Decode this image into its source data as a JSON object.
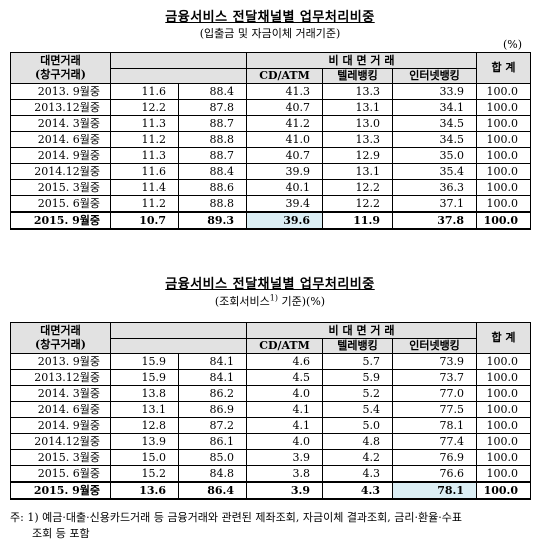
{
  "table1": {
    "title": "금융서비스 전달채널별 업무처리비중",
    "subtitle": "(입출금 및 자금이체 거래기준)",
    "unit": "(%)",
    "headers": {
      "face": "대면거래",
      "face_sub": "(창구거래)",
      "nonface": "비 대 면 거 래",
      "cd": "CD/ATM",
      "tele": "텔레뱅킹",
      "internet": "인터넷뱅킹",
      "total": "합 계"
    },
    "rows": [
      {
        "label": "2013. 9월중",
        "face": "11.6",
        "nonface": "88.4",
        "cd": "41.3",
        "tele": "13.3",
        "internet": "33.9",
        "total": "100.0"
      },
      {
        "label": "2013.12월중",
        "face": "12.2",
        "nonface": "87.8",
        "cd": "40.7",
        "tele": "13.1",
        "internet": "34.1",
        "total": "100.0"
      },
      {
        "label": "2014. 3월중",
        "face": "11.3",
        "nonface": "88.7",
        "cd": "41.2",
        "tele": "13.0",
        "internet": "34.5",
        "total": "100.0"
      },
      {
        "label": "2014. 6월중",
        "face": "11.2",
        "nonface": "88.8",
        "cd": "41.0",
        "tele": "13.3",
        "internet": "34.5",
        "total": "100.0"
      },
      {
        "label": "2014. 9월중",
        "face": "11.3",
        "nonface": "88.7",
        "cd": "40.7",
        "tele": "12.9",
        "internet": "35.0",
        "total": "100.0"
      },
      {
        "label": "2014.12월중",
        "face": "11.6",
        "nonface": "88.4",
        "cd": "39.9",
        "tele": "13.1",
        "internet": "35.4",
        "total": "100.0"
      },
      {
        "label": "2015. 3월중",
        "face": "11.4",
        "nonface": "88.6",
        "cd": "40.1",
        "tele": "12.2",
        "internet": "36.3",
        "total": "100.0"
      },
      {
        "label": "2015. 6월중",
        "face": "11.2",
        "nonface": "88.8",
        "cd": "39.4",
        "tele": "12.2",
        "internet": "37.1",
        "total": "100.0"
      },
      {
        "label": "2015. 9월중",
        "face": "10.7",
        "nonface": "89.3",
        "cd": "39.6",
        "tele": "11.9",
        "internet": "37.8",
        "total": "100.0"
      }
    ]
  },
  "table2": {
    "title": "금융서비스 전달채널별 업무처리비중",
    "subtitle": "(조회서비스",
    "subtitle_sup": "1)",
    "subtitle_end": " 기준)(%)",
    "headers": {
      "face": "대면거래",
      "face_sub": "(창구거래)",
      "nonface": "비 대 면 거 래",
      "cd": "CD/ATM",
      "tele": "텔레뱅킹",
      "internet": "인터넷뱅킹",
      "total": "합 계"
    },
    "rows": [
      {
        "label": "2013. 9월중",
        "face": "15.9",
        "nonface": "84.1",
        "cd": "4.6",
        "tele": "5.7",
        "internet": "73.9",
        "total": "100.0"
      },
      {
        "label": "2013.12월중",
        "face": "15.9",
        "nonface": "84.1",
        "cd": "4.5",
        "tele": "5.9",
        "internet": "73.7",
        "total": "100.0"
      },
      {
        "label": "2014. 3월중",
        "face": "13.8",
        "nonface": "86.2",
        "cd": "4.0",
        "tele": "5.2",
        "internet": "77.0",
        "total": "100.0"
      },
      {
        "label": "2014. 6월중",
        "face": "13.1",
        "nonface": "86.9",
        "cd": "4.1",
        "tele": "5.4",
        "internet": "77.5",
        "total": "100.0"
      },
      {
        "label": "2014. 9월중",
        "face": "12.8",
        "nonface": "87.2",
        "cd": "4.1",
        "tele": "5.0",
        "internet": "78.1",
        "total": "100.0"
      },
      {
        "label": "2014.12월중",
        "face": "13.9",
        "nonface": "86.1",
        "cd": "4.0",
        "tele": "4.8",
        "internet": "77.4",
        "total": "100.0"
      },
      {
        "label": "2015. 3월중",
        "face": "15.0",
        "nonface": "85.0",
        "cd": "3.9",
        "tele": "4.2",
        "internet": "76.9",
        "total": "100.0"
      },
      {
        "label": "2015. 6월중",
        "face": "15.2",
        "nonface": "84.8",
        "cd": "3.8",
        "tele": "4.3",
        "internet": "76.6",
        "total": "100.0"
      },
      {
        "label": "2015. 9월중",
        "face": "13.6",
        "nonface": "86.4",
        "cd": "3.9",
        "tele": "4.3",
        "internet": "78.1",
        "total": "100.0"
      }
    ]
  },
  "note": {
    "line1": "주: 1) 예금·대출·신용카드거래 등 금융거래와 관련된 제좌조회, 자금이체 결과조회, 금리·환율·수표",
    "line2": "조회 등 포함"
  },
  "colors": {
    "header_bg": "#e2e2e2",
    "highlight": "#dbeef4"
  }
}
